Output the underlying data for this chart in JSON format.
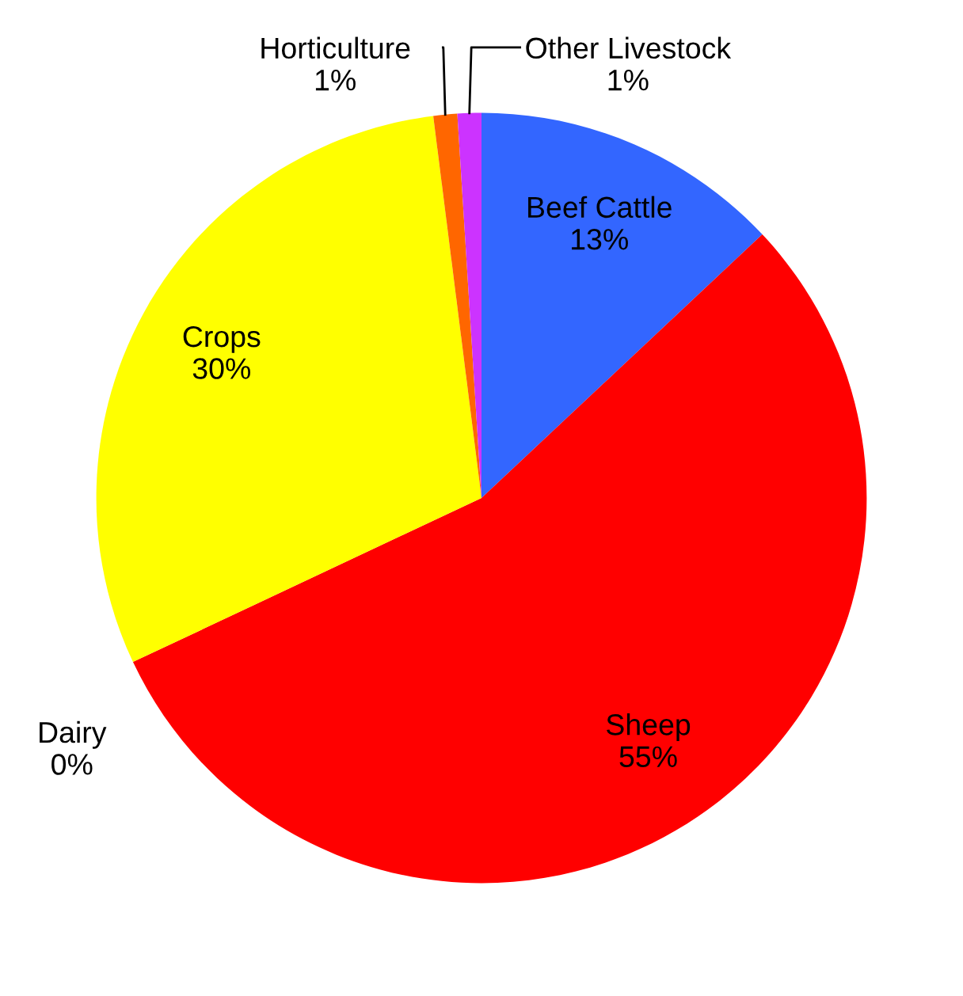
{
  "chart_data": {
    "type": "pie",
    "categories": [
      "Beef Cattle",
      "Sheep",
      "Dairy",
      "Crops",
      "Horticulture",
      "Other Livestock"
    ],
    "values": [
      13,
      55,
      0,
      30,
      1,
      1
    ],
    "colors": [
      "#3366ff",
      "#ff0000",
      "#008000",
      "#ffff00",
      "#ff6600",
      "#cc33ff"
    ],
    "value_labels": [
      "13%",
      "55%",
      "0%",
      "30%",
      "1%",
      "1%"
    ],
    "legend": false
  }
}
